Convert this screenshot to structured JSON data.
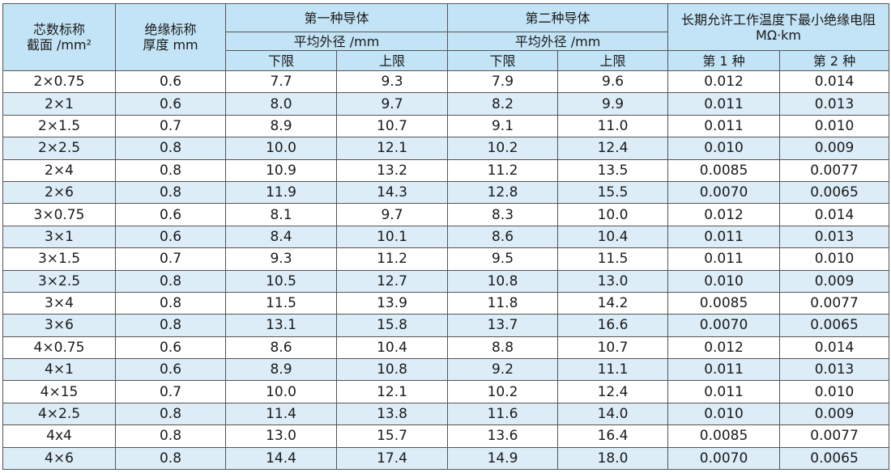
{
  "table": {
    "header": {
      "size": [
        "芯数标称",
        "截面 /mm²"
      ],
      "insulation": [
        "绝缘标称",
        "厚度 mm"
      ],
      "group1": "第一种导体",
      "group1_sub": "平均外径 /mm",
      "group1_cols": [
        "下限",
        "上限"
      ],
      "group2": "第二种导体",
      "group2_sub": "平均外径 /mm",
      "group2_cols": [
        "下限",
        "上限"
      ],
      "group3": "长期允许工作温度下最小绝缘电阻 MΩ·km",
      "group3_cols": [
        "第 1 种",
        "第 2 种"
      ]
    },
    "rows": [
      [
        "2×0.75",
        "0.6",
        "7.7",
        "9.3",
        "7.9",
        "9.6",
        "0.012",
        "0.014"
      ],
      [
        "2×1",
        "0.6",
        "8.0",
        "9.7",
        "8.2",
        "9.9",
        "0.011",
        "0.013"
      ],
      [
        "2×1.5",
        "0.7",
        "8.9",
        "10.7",
        "9.1",
        "11.0",
        "0.011",
        "0.010"
      ],
      [
        "2×2.5",
        "0.8",
        "10.0",
        "12.1",
        "10.2",
        "12.4",
        "0.010",
        "0.009"
      ],
      [
        "2×4",
        "0.8",
        "10.9",
        "13.2",
        "11.2",
        "13.5",
        "0.0085",
        "0.0077"
      ],
      [
        "2×6",
        "0.8",
        "11.9",
        "14.3",
        "12.8",
        "15.5",
        "0.0070",
        "0.0065"
      ],
      [
        "3×0.75",
        "0.6",
        "8.1",
        "9.7",
        "8.3",
        "10.0",
        "0.012",
        "0.014"
      ],
      [
        "3×1",
        "0.6",
        "8.4",
        "10.1",
        "8.6",
        "10.4",
        "0.011",
        "0.013"
      ],
      [
        "3×1.5",
        "0.7",
        "9.3",
        "11.2",
        "9.5",
        "11.5",
        "0.011",
        "0.010"
      ],
      [
        "3×2.5",
        "0.8",
        "10.5",
        "12.7",
        "10.8",
        "13.0",
        "0.010",
        "0.009"
      ],
      [
        "3×4",
        "0.8",
        "11.5",
        "13.9",
        "11.8",
        "14.2",
        "0.0085",
        "0.0077"
      ],
      [
        "3×6",
        "0.8",
        "13.1",
        "15.8",
        "13.7",
        "16.6",
        "0.0070",
        "0.0065"
      ],
      [
        "4×0.75",
        "0.6",
        "8.6",
        "10.4",
        "8.8",
        "10.7",
        "0.012",
        "0.014"
      ],
      [
        "4×1",
        "0.6",
        "8.9",
        "10.8",
        "9.2",
        "11.1",
        "0.011",
        "0.013"
      ],
      [
        "4×15",
        "0.7",
        "10.0",
        "12.1",
        "10.2",
        "12.4",
        "0.011",
        "0.010"
      ],
      [
        "4×2.5",
        "0.8",
        "11.4",
        "13.8",
        "11.6",
        "14.0",
        "0.010",
        "0.009"
      ],
      [
        "4x4",
        "0.8",
        "13.0",
        "15.7",
        "13.6",
        "16.4",
        "0.0085",
        "0.0077"
      ],
      [
        "4×6",
        "0.8",
        "14.4",
        "17.4",
        "14.9",
        "18.0",
        "0.0070",
        "0.0065"
      ]
    ]
  }
}
